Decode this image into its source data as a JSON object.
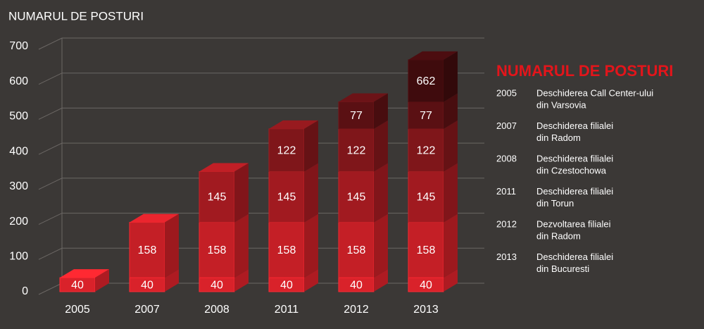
{
  "chart_data": {
    "type": "stacked_bar_3d",
    "title": "NUMARUL DE POSTURI",
    "categories": [
      "2005",
      "2007",
      "2008",
      "2011",
      "2012",
      "2013"
    ],
    "series": [
      {
        "color": "#d9222a",
        "values": [
          40,
          40,
          40,
          40,
          40,
          40
        ]
      },
      {
        "color": "#c41f26",
        "values": [
          null,
          158,
          158,
          158,
          158,
          158
        ]
      },
      {
        "color": "#a11a20",
        "values": [
          null,
          null,
          145,
          145,
          145,
          145
        ]
      },
      {
        "color": "#7f161a",
        "values": [
          null,
          null,
          null,
          122,
          122,
          122
        ]
      },
      {
        "color": "#5a1013",
        "values": [
          null,
          null,
          null,
          null,
          77,
          77
        ]
      },
      {
        "color": "#3f0b0d",
        "values": [
          null,
          null,
          null,
          null,
          null,
          120
        ]
      }
    ],
    "totals": [
      null,
      null,
      null,
      null,
      null,
      662
    ],
    "ylim": [
      0,
      700
    ],
    "yticks": [
      0,
      100,
      200,
      300,
      400,
      500,
      600,
      700
    ],
    "grid": true,
    "side_panel": {
      "title": "NUMARUL DE POSTURI",
      "items": [
        {
          "year": "2005",
          "lines": [
            "Deschiderea Call Center-ului",
            "din Varsovia"
          ]
        },
        {
          "year": "2007",
          "lines": [
            "Deschiderea filialei",
            "din Radom"
          ]
        },
        {
          "year": "2008",
          "lines": [
            "Deschiderea filialei",
            "din Czestochowa"
          ]
        },
        {
          "year": "2011",
          "lines": [
            "Deschiderea filialei",
            "din Torun"
          ]
        },
        {
          "year": "2012",
          "lines": [
            "Dezvoltarea filialei",
            "din Radom"
          ]
        },
        {
          "year": "2013",
          "lines": [
            "Deschiderea filialei",
            "din Bucuresti"
          ]
        }
      ]
    }
  }
}
